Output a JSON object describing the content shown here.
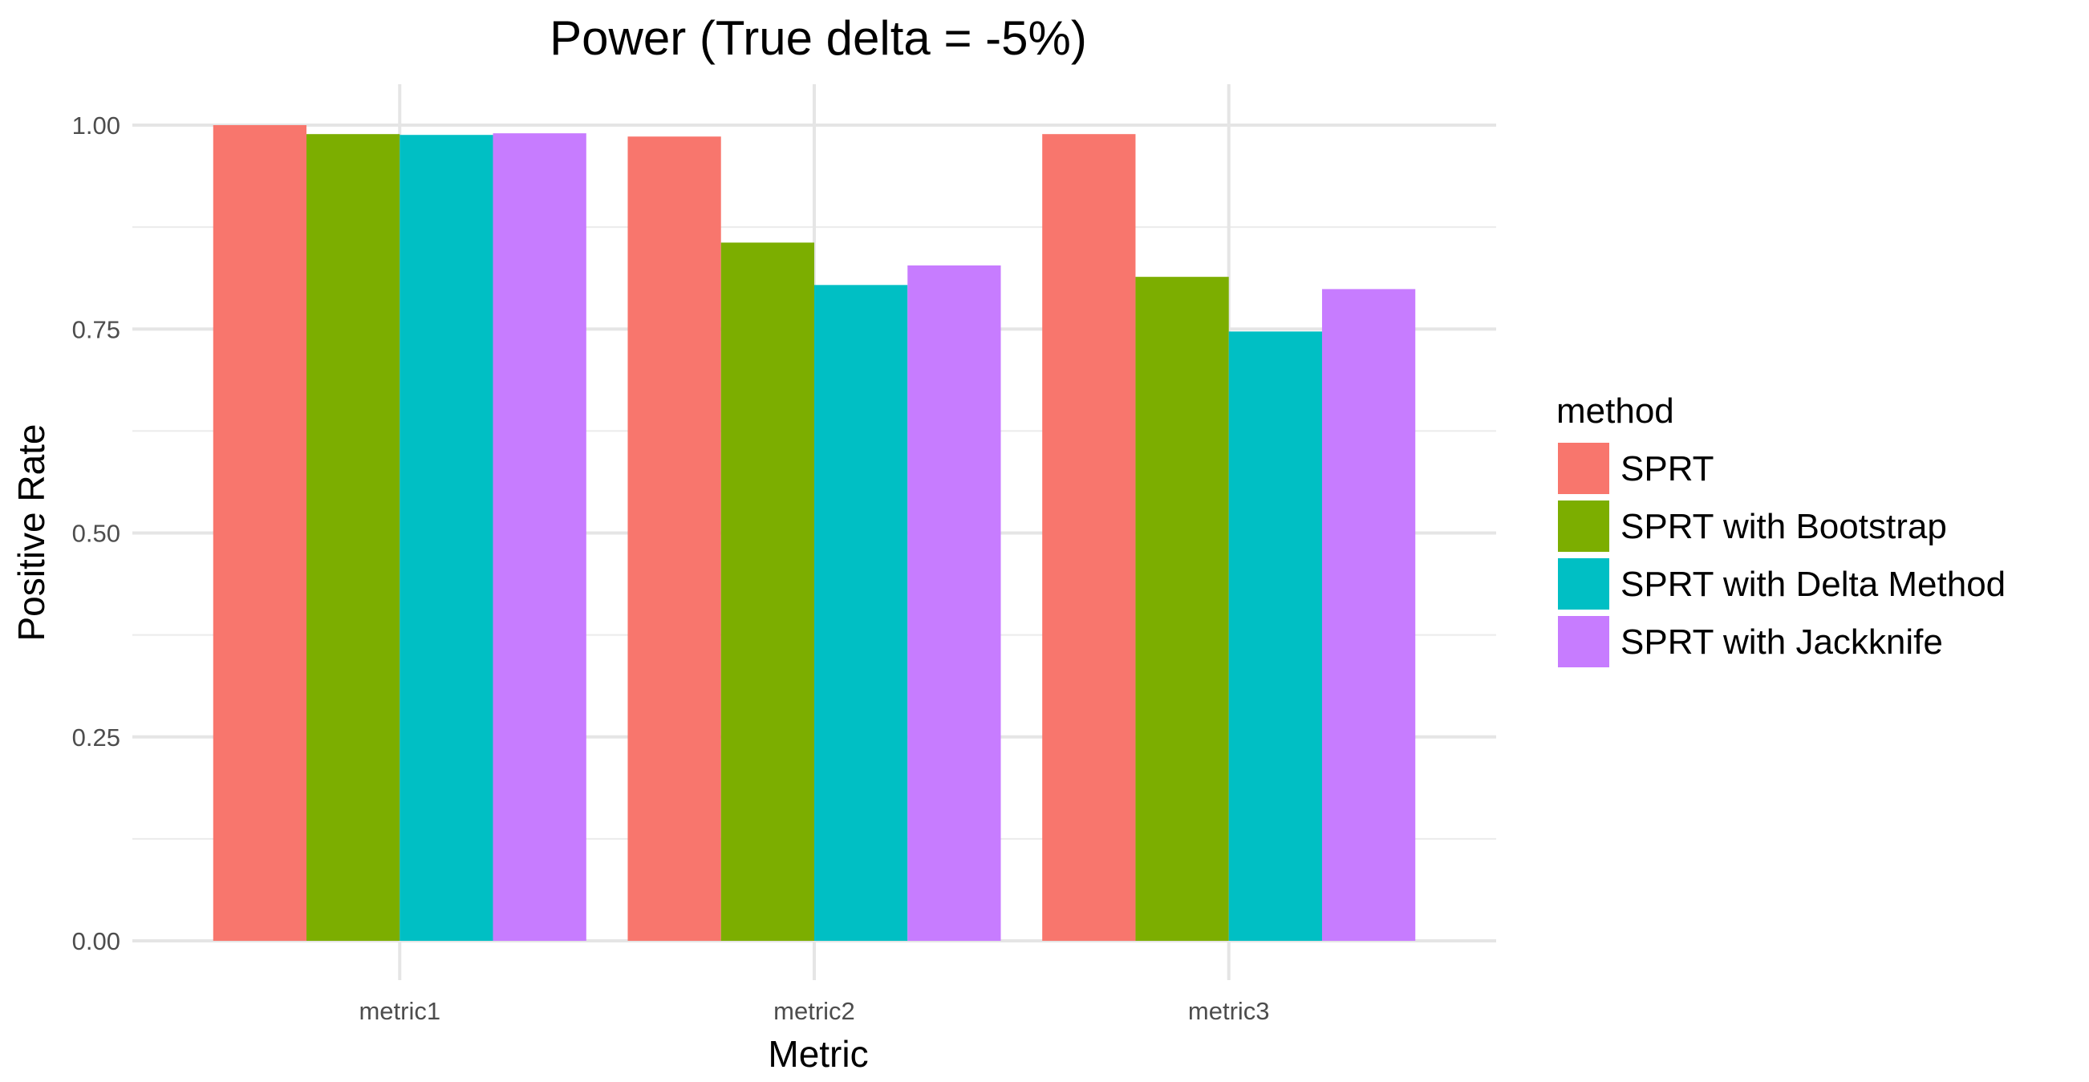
{
  "chart_data": {
    "type": "bar",
    "title": "Power (True delta = -5%)",
    "xlabel": "Metric",
    "ylabel": "Positive Rate",
    "categories": [
      "metric1",
      "metric2",
      "metric3"
    ],
    "ylim": [
      0,
      1.05
    ],
    "yticks": [
      "0.00",
      "0.25",
      "0.50",
      "0.75",
      "1.00"
    ],
    "ytick_values": [
      0,
      0.25,
      0.5,
      0.75,
      1.0
    ],
    "grid": true,
    "legend": {
      "title": "method",
      "position": "right"
    },
    "series": [
      {
        "name": "SPRT",
        "color": "#F8766D",
        "values": [
          1.0,
          0.986,
          0.989
        ]
      },
      {
        "name": "SPRT with Bootstrap",
        "color": "#7CAE00",
        "values": [
          0.989,
          0.856,
          0.814
        ]
      },
      {
        "name": "SPRT with Delta Method",
        "color": "#00BFC4",
        "values": [
          0.988,
          0.804,
          0.747
        ]
      },
      {
        "name": "SPRT with Jackknife",
        "color": "#C77CFF",
        "values": [
          0.99,
          0.828,
          0.799
        ]
      }
    ]
  }
}
